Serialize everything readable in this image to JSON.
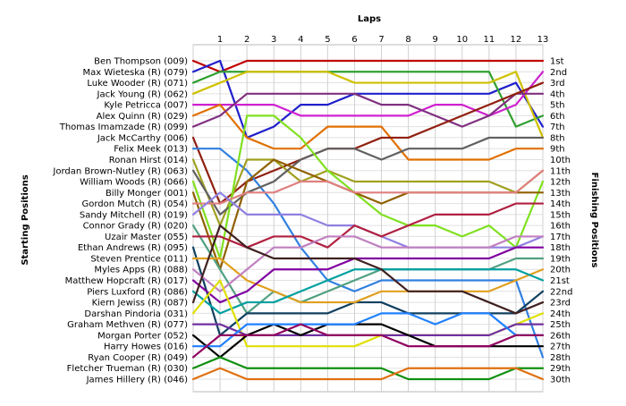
{
  "chart_data": {
    "type": "line",
    "title": "",
    "top_axis_label": "Laps",
    "left_axis_label": "Starting Positions",
    "right_axis_label": "Finishing Positions",
    "x": [
      0,
      1,
      2,
      3,
      4,
      5,
      6,
      7,
      8,
      9,
      10,
      11,
      12,
      13
    ],
    "x_tick_labels": [
      "1",
      "2",
      "3",
      "4",
      "5",
      "6",
      "7",
      "8",
      "9",
      "10",
      "11",
      "12",
      "13"
    ],
    "y_range": [
      1,
      30
    ],
    "y_inverted": true,
    "grid": true,
    "start_labels": [
      "Ben Thompson (009)",
      "Max Wieteska (R) (079)",
      "Luke Wooder (R) (071)",
      "Jack Young  (R) (062)",
      "Kyle Petricca (007)",
      "Alex Quinn (R) (029)",
      "Thomas Imamzade (R) (099)",
      "Jack McCarthy (006)",
      "Felix Meek (013)",
      "Ronan Hirst (014)",
      "Jordan Brown-Nutley (R) (063)",
      "William Woods (R) (066)",
      "Billy Monger (001)",
      "Gordon Mutch (R) (054)",
      "Sandy Mitchell (R) (019)",
      "Connor Grady (R) (020)",
      "Uzair Master (055)",
      "Ethan Andrews (R) (095)",
      "Steven Prentice (011)",
      "Myles Apps  (R) (088)",
      "Matthew Hopcraft (R) (017)",
      "Piers Luxford  (R) (086)",
      "Kiern Jewiss  (R) (087)",
      "Darshan Pindoria (031)",
      "Graham Methven (R) (077)",
      "Morgan Porter (052)",
      "Harry Howes (016)",
      "Ryan Cooper (R) (049)",
      "Fletcher Trueman (R) (030)",
      "James Hillery (R) (046)"
    ],
    "finish_labels": [
      "1st",
      "2nd",
      "3rd",
      "4th",
      "5th",
      "6th",
      "7th",
      "8th",
      "9th",
      "10th",
      "11th",
      "12th",
      "13th",
      "14th",
      "15th",
      "16th",
      "17th",
      "18th",
      "19th",
      "20th",
      "21st",
      "22nd",
      "23rd",
      "24th",
      "25th",
      "26th",
      "27th",
      "28th",
      "29th",
      "30th"
    ],
    "series": [
      {
        "color": "#c00000",
        "values": [
          1,
          2,
          1,
          1,
          1,
          1,
          1,
          1,
          1,
          1,
          1,
          1,
          1,
          1
        ]
      },
      {
        "color": "#2020cc",
        "values": [
          2,
          1,
          8,
          7,
          5,
          5,
          4,
          4,
          4,
          4,
          4,
          4,
          3,
          7
        ]
      },
      {
        "color": "#30a030",
        "values": [
          3,
          2,
          2,
          2,
          2,
          2,
          2,
          2,
          2,
          2,
          2,
          2,
          7,
          6
        ]
      },
      {
        "color": "#d0c000",
        "values": [
          4,
          3,
          2,
          2,
          2,
          2,
          3,
          3,
          3,
          3,
          3,
          3,
          2,
          8
        ]
      },
      {
        "color": "#d020d0",
        "values": [
          5,
          5,
          5,
          5,
          6,
          6,
          6,
          6,
          6,
          5,
          5,
          6,
          5,
          2
        ]
      },
      {
        "color": "#e07000",
        "values": [
          6,
          5,
          8,
          9,
          9,
          7,
          7,
          7,
          10,
          10,
          10,
          10,
          9,
          9
        ]
      },
      {
        "color": "#803080",
        "values": [
          7,
          6,
          4,
          4,
          4,
          4,
          4,
          5,
          5,
          6,
          7,
          6,
          4,
          4
        ]
      },
      {
        "color": "#902010",
        "values": [
          8,
          14,
          12,
          11,
          10,
          9,
          9,
          8,
          8,
          7,
          6,
          5,
          4,
          3
        ]
      },
      {
        "color": "#3080e0",
        "values": [
          9,
          9,
          11,
          14,
          18,
          21,
          22,
          21,
          21,
          21,
          21,
          21,
          21,
          28
        ]
      },
      {
        "color": "#a0a020",
        "values": [
          10,
          16,
          10,
          10,
          12,
          11,
          12,
          12,
          12,
          12,
          12,
          12,
          13,
          11
        ]
      },
      {
        "color": "#606060",
        "values": [
          11,
          15,
          13,
          12,
          10,
          9,
          9,
          10,
          9,
          9,
          9,
          8,
          8,
          8
        ]
      },
      {
        "color": "#80e020",
        "values": [
          12,
          19,
          6,
          6,
          8,
          11,
          13,
          15,
          16,
          16,
          17,
          16,
          18,
          12
        ]
      },
      {
        "color": "#906000",
        "values": [
          13,
          20,
          12,
          10,
          11,
          12,
          13,
          14,
          13,
          13,
          13,
          13,
          13,
          13
        ]
      },
      {
        "color": "#e08080",
        "values": [
          14,
          14,
          13,
          13,
          12,
          12,
          13,
          13,
          13,
          13,
          13,
          13,
          13,
          11
        ]
      },
      {
        "color": "#9080e0",
        "values": [
          15,
          13,
          15,
          15,
          15,
          16,
          16,
          17,
          18,
          18,
          18,
          18,
          18,
          17
        ]
      },
      {
        "color": "#50a080",
        "values": [
          16,
          20,
          24,
          22,
          23,
          22,
          21,
          20,
          20,
          20,
          20,
          20,
          19,
          19
        ]
      },
      {
        "color": "#b02040",
        "values": [
          17,
          17,
          18,
          17,
          17,
          18,
          16,
          17,
          16,
          15,
          15,
          15,
          14,
          14
        ]
      },
      {
        "color": "#104060",
        "values": [
          18,
          26,
          24,
          24,
          24,
          24,
          23,
          23,
          24,
          24,
          24,
          24,
          24,
          22
        ]
      },
      {
        "color": "#e0a020",
        "values": [
          19,
          19,
          21,
          22,
          23,
          23,
          23,
          22,
          22,
          22,
          22,
          22,
          21,
          20
        ]
      },
      {
        "color": "#c080c0",
        "values": [
          20,
          22,
          20,
          18,
          18,
          17,
          17,
          18,
          18,
          18,
          18,
          18,
          17,
          17
        ]
      },
      {
        "color": "#8000a0",
        "values": [
          21,
          23,
          22,
          20,
          20,
          20,
          19,
          19,
          19,
          19,
          19,
          19,
          18,
          18
        ]
      },
      {
        "color": "#00a0a0",
        "values": [
          22,
          24,
          23,
          23,
          22,
          21,
          20,
          20,
          20,
          20,
          20,
          20,
          20,
          21
        ]
      },
      {
        "color": "#402020",
        "values": [
          23,
          16,
          18,
          19,
          19,
          19,
          19,
          20,
          22,
          22,
          22,
          23,
          24,
          23
        ]
      },
      {
        "color": "#e0e000",
        "values": [
          24,
          21,
          27,
          27,
          27,
          27,
          27,
          26,
          26,
          26,
          26,
          26,
          25,
          24
        ]
      },
      {
        "color": "#7030a0",
        "values": [
          25,
          25,
          26,
          26,
          26,
          26,
          26,
          26,
          26,
          26,
          26,
          26,
          25,
          25
        ]
      },
      {
        "color": "#000000",
        "values": [
          26,
          28,
          26,
          25,
          26,
          25,
          25,
          25,
          26,
          27,
          27,
          27,
          27,
          27
        ]
      },
      {
        "color": "#2080ff",
        "values": [
          27,
          27,
          25,
          25,
          25,
          25,
          25,
          24,
          24,
          25,
          24,
          24,
          26,
          26
        ]
      },
      {
        "color": "#900060",
        "values": [
          28,
          26,
          26,
          26,
          25,
          26,
          26,
          26,
          27,
          27,
          27,
          27,
          26,
          26
        ]
      },
      {
        "color": "#109010",
        "values": [
          29,
          28,
          29,
          29,
          29,
          29,
          29,
          29,
          30,
          30,
          30,
          30,
          29,
          29
        ]
      },
      {
        "color": "#e07010",
        "values": [
          30,
          29,
          30,
          30,
          30,
          30,
          30,
          30,
          29,
          29,
          29,
          29,
          29,
          30
        ]
      }
    ]
  }
}
